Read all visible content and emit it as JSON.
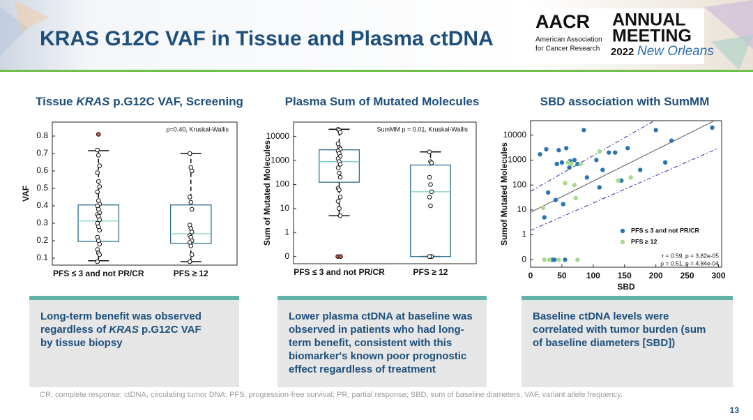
{
  "header": {
    "title": "KRAS G12C VAF in Tissue and Plasma ctDNA",
    "logo": {
      "org": "AACR",
      "org_full_1": "American Association",
      "org_full_2": "for Cancer Research",
      "event_1": "ANNUAL",
      "event_2": "MEETING",
      "year": "2022",
      "city": "New Orleans"
    }
  },
  "chart_data": [
    {
      "type": "box",
      "title": [
        "Tissue ",
        "KRAS",
        " p.G12C VAF, Screening"
      ],
      "y_label": "VAF",
      "annotation": "p=0.40, Kruskal-Wallis",
      "categories": [
        "PFS ≤ 3 and not PR/CR",
        "PFS ≥ 12"
      ],
      "ylim": [
        0.06,
        0.88
      ],
      "yticks": [
        0.1,
        0.2,
        0.3,
        0.4,
        0.5,
        0.6,
        0.7,
        0.8
      ],
      "box_color": "#2e6e8e",
      "median_color": "#7ecdc4",
      "outlier_color": "#e05050",
      "boxes": [
        {
          "whisker_low": 0.085,
          "q1": 0.196,
          "median": 0.313,
          "q3": 0.405,
          "whisker_high": 0.716,
          "points": [
            0.72,
            0.69,
            0.63,
            0.59,
            0.54,
            0.51,
            0.48,
            0.43,
            0.41,
            0.4,
            0.38,
            0.36,
            0.35,
            0.34,
            0.32,
            0.3,
            0.28,
            0.26,
            0.22,
            0.2,
            0.18,
            0.15,
            0.13,
            0.12,
            0.08
          ],
          "outliers": [
            0.81
          ]
        },
        {
          "whisker_low": 0.08,
          "q1": 0.185,
          "median": 0.24,
          "q3": 0.405,
          "whisker_high": 0.7,
          "points": [
            0.7,
            0.62,
            0.6,
            0.45,
            0.42,
            0.38,
            0.29,
            0.27,
            0.25,
            0.23,
            0.22,
            0.2,
            0.19,
            0.17,
            0.12,
            0.08
          ],
          "outliers": []
        }
      ]
    },
    {
      "type": "box",
      "title": [
        "Plasma Sum of Mutated Molecules"
      ],
      "y_label": "Sum of Mutated Molecules",
      "annotation": "SumMM p = 0.01, Kruskal-Wallis",
      "categories": [
        "PFS ≤ 3 and not PR/CR",
        "PFS ≥ 12"
      ],
      "scale": "log_zero",
      "ylim": [
        0,
        40000
      ],
      "yticks": [
        0,
        1,
        10,
        100,
        1000,
        10000
      ],
      "box_color": "#2e6e8e",
      "median_color": "#7ecdc4",
      "outlier_color": "#e05050",
      "boxes": [
        {
          "whisker_low": 5,
          "q1": 125,
          "median": 900,
          "q3": 2800,
          "whisker_high": 20000,
          "points": [
            20000,
            18000,
            15000,
            5000,
            3500,
            3000,
            2500,
            2000,
            1500,
            1200,
            900,
            700,
            500,
            300,
            200,
            70,
            60,
            30,
            20,
            10,
            5
          ],
          "outliers": [
            0,
            0
          ]
        },
        {
          "whisker_low": 0,
          "q1": 0,
          "median": 50,
          "q3": 650,
          "whisker_high": 2300,
          "points": [
            2300,
            900,
            800,
            200,
            100,
            50,
            30,
            13,
            0,
            0,
            0,
            0,
            0
          ],
          "outliers": []
        }
      ]
    },
    {
      "type": "scatter",
      "title": [
        "SBD association with SumMM"
      ],
      "y_label": "Sumof Mutated Molecules",
      "x_label": "SBD",
      "scale": "log_zero",
      "xlim": [
        0,
        305
      ],
      "xticks": [
        0,
        50,
        100,
        150,
        200,
        250,
        300
      ],
      "ylim": [
        0,
        38000
      ],
      "yticks": [
        0,
        1,
        10,
        100,
        1000,
        10000
      ],
      "annotations": [
        "r = 0.59, p = 3.82e-05",
        "ρ = 0.51, p = 4.84e-04"
      ],
      "series": [
        {
          "name": "PFS ≤ 3 and not PR/CR",
          "color": "#2c74b3",
          "x": [
            15,
            22,
            25,
            28,
            35,
            38,
            40,
            42,
            45,
            50,
            52,
            55,
            57,
            62,
            63,
            70,
            75,
            85,
            90,
            105,
            110,
            115,
            125,
            135,
            145,
            155,
            175,
            200,
            215,
            225,
            290
          ],
          "values": [
            1700,
            5,
            2700,
            50,
            0,
            0,
            25,
            700,
            2500,
            800,
            17,
            0,
            3000,
            500,
            900,
            1000,
            700,
            16000,
            200,
            1000,
            80,
            400,
            2000,
            2000,
            150,
            3000,
            400,
            16000,
            800,
            6000,
            20000
          ]
        },
        {
          "name": "PFS ≥ 12",
          "color": "#a6d98a",
          "x": [
            20,
            22,
            30,
            45,
            55,
            60,
            65,
            70,
            72,
            75,
            80,
            110,
            140,
            160
          ],
          "values": [
            12,
            0,
            0,
            0,
            120,
            800,
            700,
            100,
            30,
            0,
            700,
            2200,
            150,
            200
          ]
        }
      ],
      "lines": [
        {
          "style": "solid",
          "color": "#555555",
          "x": [
            0,
            300
          ],
          "values": [
            8,
            46000
          ]
        },
        {
          "style": "dashdot",
          "color": "#2a2aa8",
          "x": [
            0,
            200
          ],
          "values": [
            56,
            41000
          ]
        },
        {
          "style": "dashdot",
          "color": "#2a2aa8",
          "x": [
            0,
            300
          ],
          "values": [
            1.5,
            3000
          ]
        }
      ]
    }
  ],
  "captions": [
    [
      "Long-term benefit was observed",
      [
        "regardless of ",
        "KRAS",
        " p.G12C VAF"
      ],
      "by tissue biopsy"
    ],
    [
      "Lower plasma ctDNA at baseline was",
      "observed in patients who had long-",
      "term benefit, consistent with this",
      "biomarker's known poor prognostic",
      "effect regardless of treatment"
    ],
    [
      "Baseline ctDNA levels were",
      "correlated with tumor burden (sum",
      "of baseline diameters [SBD])"
    ]
  ],
  "footnote": "CR, complete response; ctDNA, circulating tumor DNA; PFS, progression-free survival; PR, partial response; SBD, sum of baseline diameters; VAF, variant allele frequency.",
  "page_number": "13"
}
